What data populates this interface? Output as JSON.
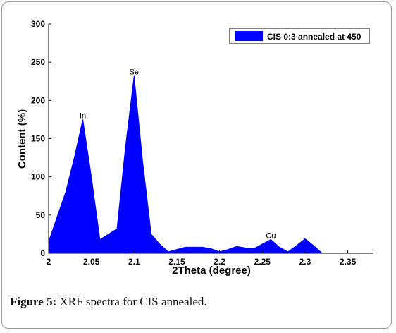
{
  "figure": {
    "caption_label": "Figure 5:",
    "caption_text": " XRF spectra for CIS annealed."
  },
  "chart_data": {
    "type": "area",
    "xlabel": "2Theta (degree)",
    "ylabel": "Content (%)",
    "xlim": [
      2,
      2.38
    ],
    "ylim": [
      0,
      300
    ],
    "x_ticks": [
      "2",
      "2.05",
      "2.1",
      "2.15",
      "2.2",
      "2.25",
      "2.3",
      "2.35"
    ],
    "y_ticks": [
      "0",
      "50",
      "100",
      "150",
      "200",
      "250",
      "300"
    ],
    "legend_position": "top-right",
    "grid": false,
    "series": [
      {
        "name": "CIS 0:3 annealed at 450",
        "color": "#0000ff",
        "x": [
          2.0,
          2.01,
          2.02,
          2.03,
          2.04,
          2.05,
          2.06,
          2.07,
          2.08,
          2.09,
          2.1,
          2.11,
          2.12,
          2.13,
          2.14,
          2.15,
          2.16,
          2.17,
          2.18,
          2.19,
          2.2,
          2.21,
          2.22,
          2.23,
          2.24,
          2.25,
          2.26,
          2.27,
          2.28,
          2.29,
          2.3,
          2.31,
          2.32,
          2.33,
          2.34,
          2.35,
          2.36,
          2.37,
          2.38
        ],
        "y": [
          15,
          48,
          80,
          125,
          175,
          100,
          18,
          25,
          32,
          140,
          232,
          120,
          25,
          12,
          2,
          5,
          8,
          8,
          8,
          6,
          2,
          5,
          9,
          7,
          6,
          12,
          18,
          8,
          2,
          10,
          19,
          10,
          0,
          0,
          0,
          0,
          0,
          0,
          0
        ]
      }
    ],
    "annotations": [
      {
        "text": "In",
        "x": 2.04,
        "y": 175
      },
      {
        "text": "Se",
        "x": 2.1,
        "y": 232
      },
      {
        "text": "Cu",
        "x": 2.26,
        "y": 18
      }
    ]
  }
}
